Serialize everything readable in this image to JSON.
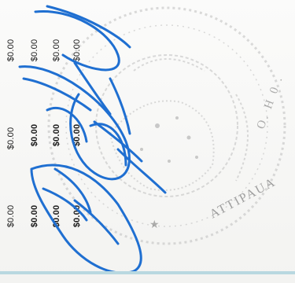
{
  "document": {
    "amounts": [
      {
        "col": 0,
        "row": 0,
        "text": "$0.00",
        "bold": false
      },
      {
        "col": 0,
        "row": 1,
        "text": "$0.00",
        "bold": false
      },
      {
        "col": 0,
        "row": 2,
        "text": "$0.00",
        "bold": false
      },
      {
        "col": 1,
        "row": 0,
        "text": "$0.00",
        "bold": false
      },
      {
        "col": 1,
        "row": 1,
        "text": "$0.00",
        "bold": true
      },
      {
        "col": 1,
        "row": 2,
        "text": "$0.00",
        "bold": true
      },
      {
        "col": 2,
        "row": 0,
        "text": "$0.00",
        "bold": false
      },
      {
        "col": 2,
        "row": 1,
        "text": "$0.00",
        "bold": true
      },
      {
        "col": 2,
        "row": 2,
        "text": "$0.00",
        "bold": true
      },
      {
        "col": 3,
        "row": 0,
        "text": "$0.00",
        "bold": false
      },
      {
        "col": 3,
        "row": 1,
        "text": "$0.00",
        "bold": true
      },
      {
        "col": 3,
        "row": 2,
        "text": "$0.00",
        "bold": true
      }
    ],
    "seal_text": "ATTIPAUA . . . O.",
    "signature_color": "#1f6fd1",
    "footer_rule_color": "#b9d8e0"
  }
}
